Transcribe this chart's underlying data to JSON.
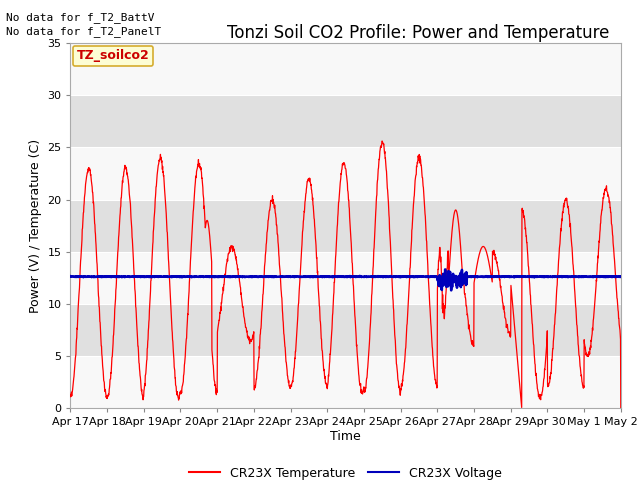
{
  "title": "Tonzi Soil CO2 Profile: Power and Temperature",
  "ylabel": "Power (V) / Temperature (C)",
  "xlabel": "Time",
  "annotations": [
    "No data for f_T2_BattV",
    "No data for f_T2_PanelT"
  ],
  "legend_box_label": "TZ_soilco2",
  "ylim": [
    0,
    35
  ],
  "xlim": [
    0,
    15
  ],
  "x_tick_labels": [
    "Apr 17",
    "Apr 18",
    "Apr 19",
    "Apr 20",
    "Apr 21",
    "Apr 22",
    "Apr 23",
    "Apr 24",
    "Apr 25",
    "Apr 26",
    "Apr 27",
    "Apr 28",
    "Apr 29",
    "Apr 30",
    "May 1",
    "May 2"
  ],
  "yticks": [
    0,
    5,
    10,
    15,
    20,
    25,
    30,
    35
  ],
  "fig_bg_color": "#ffffff",
  "plot_bg_color": "#e8e8e8",
  "grid_color": "#f5f5f5",
  "temp_color": "#ff0000",
  "voltage_color": "#0000bb",
  "voltage_value": 12.6,
  "legend_entries": [
    "CR23X Temperature",
    "CR23X Voltage"
  ],
  "title_fontsize": 12,
  "label_fontsize": 9,
  "tick_fontsize": 8,
  "annot_fontsize": 8
}
